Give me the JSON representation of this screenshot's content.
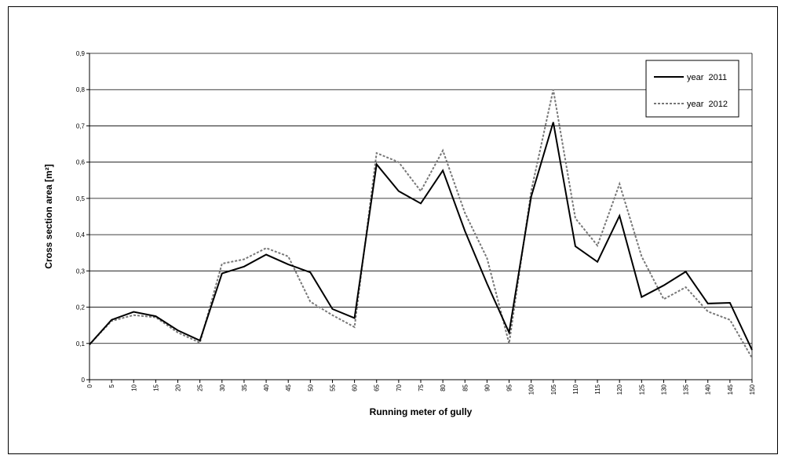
{
  "chart_data": {
    "type": "line",
    "title": "",
    "xlabel": "Running meter of gully",
    "ylabel": "Cross section area [m²]",
    "x": [
      0,
      5,
      10,
      15,
      20,
      25,
      30,
      35,
      40,
      45,
      50,
      55,
      60,
      65,
      70,
      75,
      80,
      85,
      90,
      95,
      100,
      105,
      110,
      115,
      120,
      125,
      130,
      135,
      140,
      145,
      150
    ],
    "x_tick_labels": [
      "0",
      "5",
      "10",
      "15",
      "20",
      "25",
      "30",
      "35",
      "40",
      "45",
      "50",
      "55",
      "60",
      "65",
      "70",
      "75",
      "80",
      "85",
      "90",
      "95",
      "100",
      "105",
      "110",
      "115",
      "120",
      "125",
      "130",
      "135",
      "140",
      "145",
      "150"
    ],
    "y_tick_labels": [
      "0",
      "0,1",
      "0,2",
      "0,3",
      "0,4",
      "0,5",
      "0,6",
      "0,7",
      "0,8",
      "0,9"
    ],
    "xlim": [
      0,
      150
    ],
    "ylim": [
      0,
      0.9
    ],
    "grid": "horizontal",
    "legend_position": "top-right",
    "series": [
      {
        "name": "year  2011",
        "style": "solid",
        "color": "#000000",
        "values": [
          0.097,
          0.165,
          0.187,
          0.175,
          0.136,
          0.108,
          0.293,
          0.312,
          0.345,
          0.318,
          0.296,
          0.195,
          0.17,
          0.594,
          0.52,
          0.486,
          0.577,
          0.41,
          0.265,
          0.13,
          0.505,
          0.71,
          0.368,
          0.325,
          0.452,
          0.228,
          0.26,
          0.298,
          0.21,
          0.212,
          0.082
        ]
      },
      {
        "name": "year  2012",
        "style": "dotted",
        "color": "#777777",
        "values": [
          0.097,
          0.162,
          0.178,
          0.172,
          0.13,
          0.102,
          0.32,
          0.332,
          0.363,
          0.34,
          0.215,
          0.178,
          0.145,
          0.625,
          0.6,
          0.52,
          0.632,
          0.46,
          0.335,
          0.1,
          0.52,
          0.8,
          0.445,
          0.37,
          0.54,
          0.34,
          0.222,
          0.255,
          0.188,
          0.165,
          0.06
        ]
      }
    ]
  }
}
